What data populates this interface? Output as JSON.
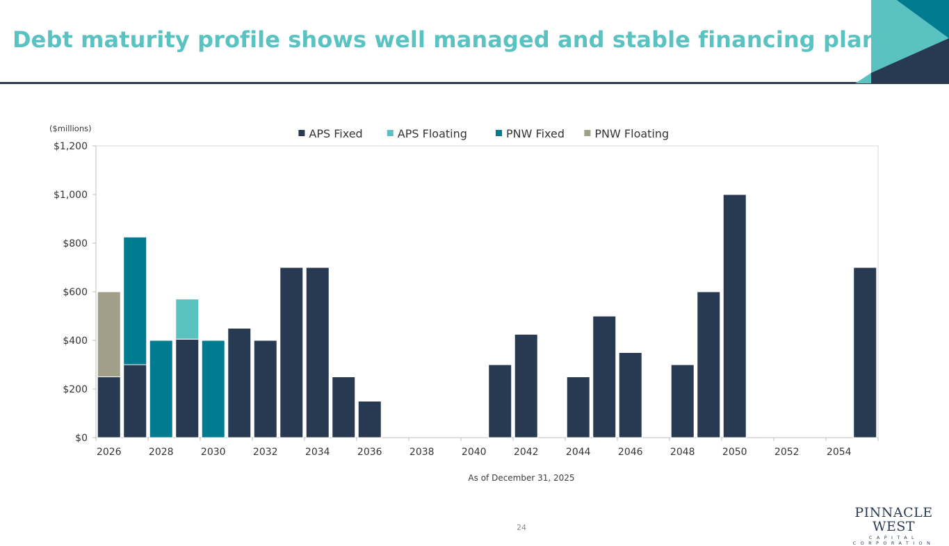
{
  "slide": {
    "title": "Debt maturity profile shows well managed and stable financing plan",
    "units_label": "($millions)",
    "footnote": "As of December 31, 2025",
    "page_number": "24",
    "logo_main": "PINNACLE WEST",
    "logo_sub": "CAPITAL CORPORATION"
  },
  "colors": {
    "title": "#5bc2c2",
    "rule": "#273a52",
    "corner_dark": "#273a52",
    "corner_teal": "#5bc2c2",
    "corner_blue": "#007b8f"
  },
  "chart_data": {
    "type": "bar",
    "stacked": true,
    "categories": [
      "2026",
      "2027",
      "2028",
      "2029",
      "2030",
      "2031",
      "2032",
      "2033",
      "2034",
      "2035",
      "2036",
      "2037",
      "2038",
      "2039",
      "2040",
      "2041",
      "2042",
      "2043",
      "2044",
      "2045",
      "2046",
      "2047",
      "2048",
      "2049",
      "2050",
      "2051",
      "2052",
      "2053",
      "2054",
      "2055"
    ],
    "x_tick_labels": [
      "2026",
      "2028",
      "2030",
      "2032",
      "2034",
      "2036",
      "2038",
      "2040",
      "2042",
      "2044",
      "2046",
      "2048",
      "2050",
      "2052",
      "2054"
    ],
    "series": [
      {
        "name": "APS Fixed",
        "color": "#273a52",
        "values": [
          250,
          300,
          0,
          405,
          0,
          450,
          400,
          700,
          700,
          250,
          150,
          0,
          0,
          0,
          0,
          300,
          425,
          0,
          250,
          500,
          350,
          0,
          300,
          600,
          1000,
          0,
          0,
          0,
          0,
          700
        ]
      },
      {
        "name": "APS Floating",
        "color": "#5bc2c2",
        "values": [
          0,
          0,
          0,
          165,
          0,
          0,
          0,
          0,
          0,
          0,
          0,
          0,
          0,
          0,
          0,
          0,
          0,
          0,
          0,
          0,
          0,
          0,
          0,
          0,
          0,
          0,
          0,
          0,
          0,
          0
        ]
      },
      {
        "name": "PNW Fixed",
        "color": "#007b8f",
        "values": [
          0,
          525,
          400,
          0,
          400,
          0,
          0,
          0,
          0,
          0,
          0,
          0,
          0,
          0,
          0,
          0,
          0,
          0,
          0,
          0,
          0,
          0,
          0,
          0,
          0,
          0,
          0,
          0,
          0,
          0
        ]
      },
      {
        "name": "PNW Floating",
        "color": "#a19f88",
        "values": [
          350,
          0,
          0,
          0,
          0,
          0,
          0,
          0,
          0,
          0,
          0,
          0,
          0,
          0,
          0,
          0,
          0,
          0,
          0,
          0,
          0,
          0,
          0,
          0,
          0,
          0,
          0,
          0,
          0,
          0
        ]
      }
    ],
    "y_ticks": [
      "$0",
      "$200",
      "$400",
      "$600",
      "$800",
      "$1,000",
      "$1,200"
    ],
    "ylim": [
      0,
      1200
    ],
    "legend_position": "top",
    "grid": false
  }
}
